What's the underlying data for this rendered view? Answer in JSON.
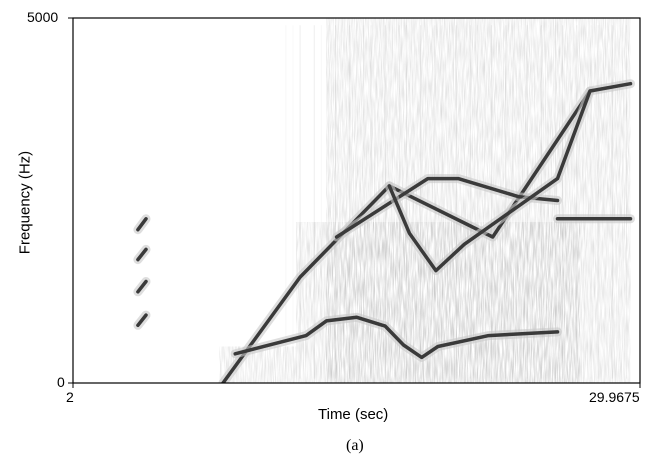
{
  "chart_data": {
    "type": "spectrogram",
    "xlabel": "Time (sec)",
    "ylabel": "Frequency (Hz)",
    "xlim": [
      2,
      29.9675
    ],
    "ylim": [
      0,
      5000
    ],
    "x_tick_labels": [
      "2",
      "29.9675"
    ],
    "y_tick_labels": [
      "0",
      "5000"
    ],
    "caption": "(a)",
    "colormap": "grayscale",
    "traces": [
      {
        "points": [
          [
            9.4,
            0
          ],
          [
            13.2,
            1450
          ],
          [
            17.6,
            2700
          ],
          [
            22.7,
            2000
          ],
          [
            27.5,
            4000
          ]
        ]
      },
      {
        "points": [
          [
            15.0,
            2000
          ],
          [
            19.5,
            2800
          ],
          [
            21.0,
            2800
          ],
          [
            24.0,
            2550
          ],
          [
            25.9,
            2500
          ]
        ]
      },
      {
        "points": [
          [
            17.6,
            2700
          ],
          [
            18.6,
            2050
          ],
          [
            19.9,
            1540
          ],
          [
            21.3,
            1900
          ],
          [
            25.9,
            2800
          ],
          [
            27.5,
            4000
          ],
          [
            29.5,
            4100
          ]
        ]
      },
      {
        "points": [
          [
            10.0,
            400
          ],
          [
            13.5,
            650
          ],
          [
            14.5,
            850
          ],
          [
            16.0,
            900
          ],
          [
            17.4,
            780
          ],
          [
            18.3,
            520
          ],
          [
            19.2,
            350
          ],
          [
            20.0,
            500
          ],
          [
            22.5,
            650
          ],
          [
            25.9,
            700
          ]
        ]
      },
      {
        "points": [
          [
            25.9,
            2250
          ],
          [
            29.5,
            2250
          ]
        ]
      },
      {
        "points": [
          [
            5.2,
            2100
          ],
          [
            5.6,
            2250
          ]
        ]
      },
      {
        "points": [
          [
            5.2,
            1690
          ],
          [
            5.6,
            1830
          ]
        ]
      },
      {
        "points": [
          [
            5.2,
            1250
          ],
          [
            5.6,
            1390
          ]
        ]
      },
      {
        "points": [
          [
            5.2,
            790
          ],
          [
            5.6,
            930
          ]
        ]
      }
    ]
  }
}
